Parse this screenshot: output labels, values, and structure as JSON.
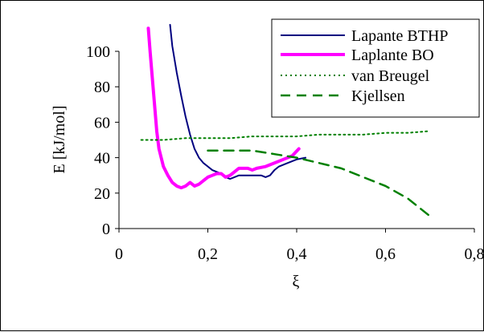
{
  "chart_data": {
    "type": "line",
    "title": "",
    "xlabel": "ξ",
    "ylabel": "E [kJ/mol]",
    "xlim": [
      0,
      0.8
    ],
    "ylim": [
      0,
      100
    ],
    "x_ticks": [
      {
        "value": 0,
        "label": "0"
      },
      {
        "value": 0.2,
        "label": "0,2"
      },
      {
        "value": 0.4,
        "label": "0,4"
      },
      {
        "value": 0.6,
        "label": "0,6"
      },
      {
        "value": 0.8,
        "label": "0,8"
      }
    ],
    "y_ticks": [
      {
        "value": 0,
        "label": "0"
      },
      {
        "value": 20,
        "label": "20"
      },
      {
        "value": 40,
        "label": "40"
      },
      {
        "value": 60,
        "label": "60"
      },
      {
        "value": 80,
        "label": "80"
      },
      {
        "value": 100,
        "label": "100"
      }
    ],
    "grid": false,
    "legend": "top-right",
    "series": [
      {
        "name": "Lapante BTHP",
        "color": "#000080",
        "dash": "solid",
        "thickness": "thin",
        "points": [
          [
            0.115,
            115
          ],
          [
            0.12,
            103
          ],
          [
            0.13,
            88
          ],
          [
            0.14,
            75
          ],
          [
            0.15,
            63
          ],
          [
            0.16,
            53
          ],
          [
            0.17,
            45
          ],
          [
            0.18,
            40
          ],
          [
            0.19,
            37
          ],
          [
            0.2,
            35
          ],
          [
            0.21,
            33
          ],
          [
            0.22,
            32
          ],
          [
            0.23,
            31
          ],
          [
            0.24,
            29
          ],
          [
            0.25,
            28
          ],
          [
            0.26,
            29
          ],
          [
            0.27,
            30
          ],
          [
            0.3,
            30
          ],
          [
            0.32,
            30
          ],
          [
            0.33,
            29
          ],
          [
            0.34,
            30
          ],
          [
            0.35,
            33
          ],
          [
            0.36,
            35
          ],
          [
            0.38,
            37
          ],
          [
            0.4,
            39
          ],
          [
            0.42,
            40
          ]
        ]
      },
      {
        "name": "Laplante BO",
        "color": "#FF00FF",
        "dash": "solid",
        "thickness": "thick",
        "points": [
          [
            0.066,
            113
          ],
          [
            0.07,
            100
          ],
          [
            0.075,
            85
          ],
          [
            0.08,
            70
          ],
          [
            0.085,
            55
          ],
          [
            0.09,
            45
          ],
          [
            0.1,
            35
          ],
          [
            0.11,
            30
          ],
          [
            0.12,
            26
          ],
          [
            0.13,
            24
          ],
          [
            0.14,
            23
          ],
          [
            0.15,
            24
          ],
          [
            0.16,
            26
          ],
          [
            0.17,
            24
          ],
          [
            0.18,
            25
          ],
          [
            0.19,
            27
          ],
          [
            0.2,
            29
          ],
          [
            0.21,
            30
          ],
          [
            0.22,
            31
          ],
          [
            0.23,
            31
          ],
          [
            0.24,
            29
          ],
          [
            0.25,
            30
          ],
          [
            0.26,
            32
          ],
          [
            0.27,
            34
          ],
          [
            0.28,
            34
          ],
          [
            0.29,
            34
          ],
          [
            0.3,
            33
          ],
          [
            0.31,
            34
          ],
          [
            0.33,
            35
          ],
          [
            0.35,
            37
          ],
          [
            0.37,
            39
          ],
          [
            0.39,
            41
          ],
          [
            0.405,
            45
          ]
        ]
      },
      {
        "name": "van Breugel",
        "color": "#008000",
        "dash": "dotted",
        "thickness": "thin",
        "points": [
          [
            0.05,
            50
          ],
          [
            0.1,
            50
          ],
          [
            0.15,
            51
          ],
          [
            0.2,
            51
          ],
          [
            0.25,
            51
          ],
          [
            0.3,
            52
          ],
          [
            0.35,
            52
          ],
          [
            0.4,
            52
          ],
          [
            0.45,
            53
          ],
          [
            0.5,
            53
          ],
          [
            0.55,
            53
          ],
          [
            0.6,
            54
          ],
          [
            0.65,
            54
          ],
          [
            0.7,
            55
          ]
        ]
      },
      {
        "name": "Kjellsen",
        "color": "#008000",
        "dash": "dashed",
        "thickness": "medium",
        "points": [
          [
            0.2,
            44
          ],
          [
            0.22,
            44
          ],
          [
            0.25,
            44
          ],
          [
            0.3,
            44
          ],
          [
            0.35,
            42
          ],
          [
            0.4,
            40
          ],
          [
            0.45,
            37
          ],
          [
            0.5,
            34
          ],
          [
            0.55,
            29
          ],
          [
            0.6,
            24
          ],
          [
            0.65,
            17
          ],
          [
            0.7,
            7
          ]
        ]
      }
    ]
  }
}
